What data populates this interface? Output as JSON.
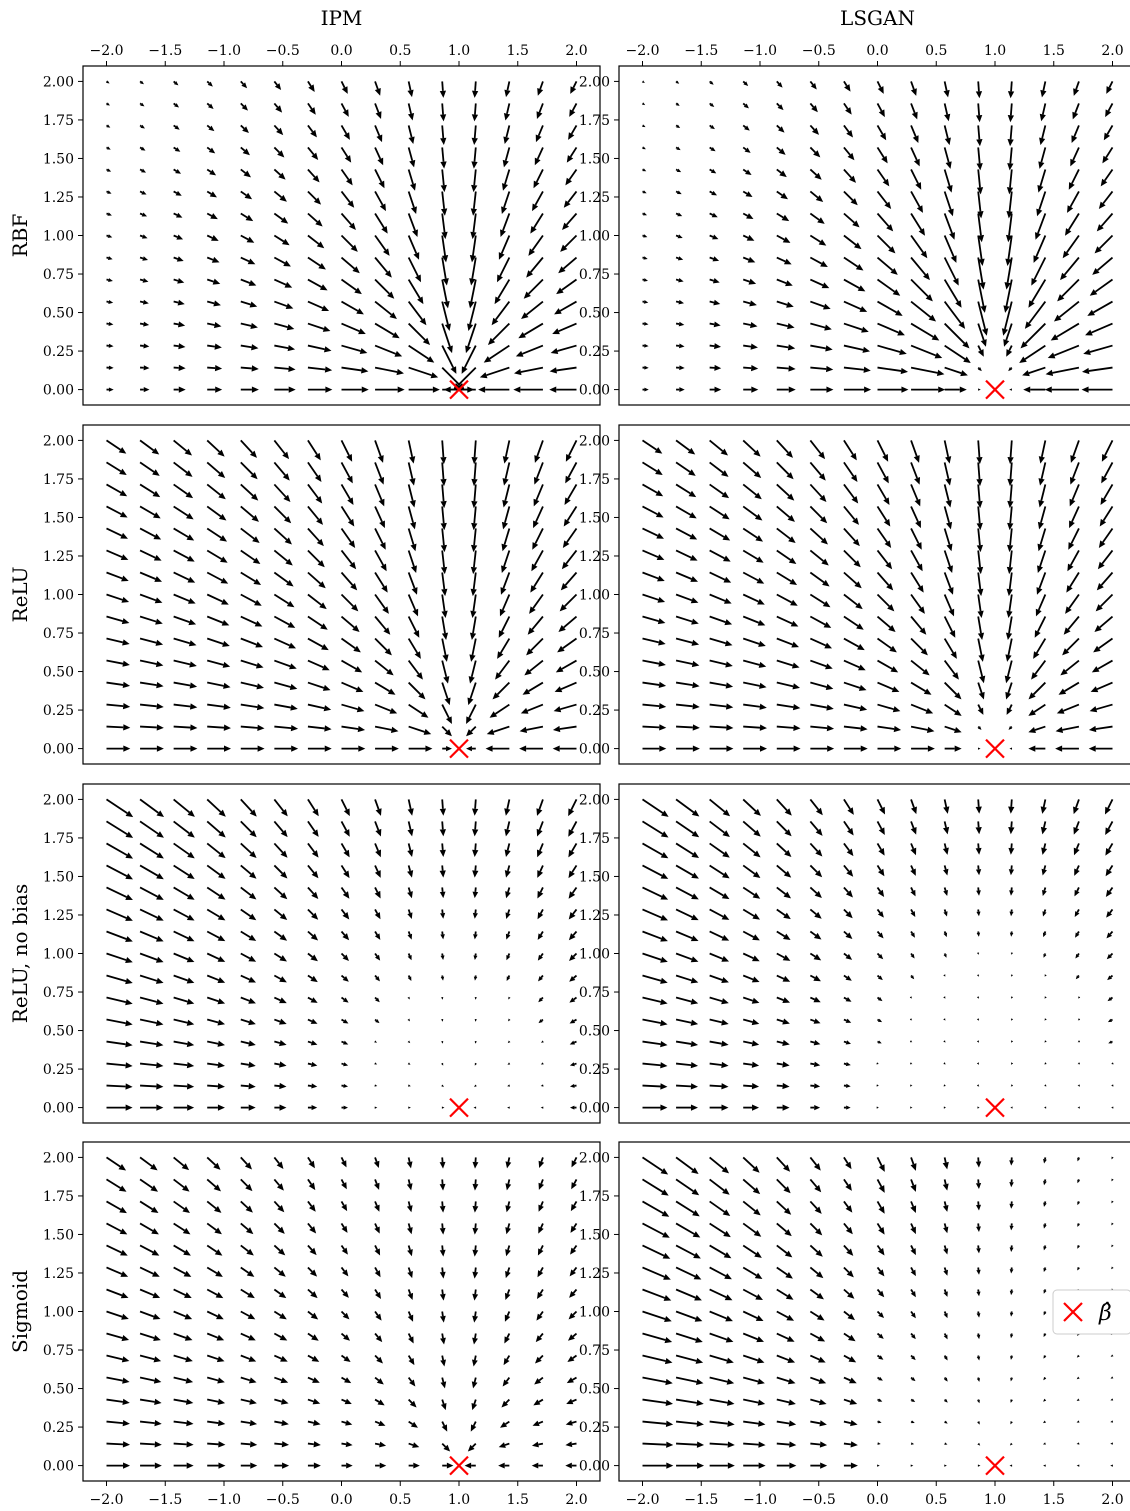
{
  "chart_data": {
    "type": "quiver",
    "layout": "4 rows x 2 columns grid of vector-field plots",
    "columns": [
      "IPM",
      "LSGAN"
    ],
    "rows": [
      "RBF",
      "ReLU",
      "ReLU, no bias",
      "Sigmoid"
    ],
    "x_ticks": [
      -2.0,
      -1.5,
      -1.0,
      -0.5,
      0.0,
      0.5,
      1.0,
      1.5,
      2.0
    ],
    "x_tick_labels": [
      "−2.0",
      "−1.5",
      "−1.0",
      "−0.5",
      "0.0",
      "0.5",
      "1.0",
      "1.5",
      "2.0"
    ],
    "y_ticks": [
      0.0,
      0.25,
      0.5,
      0.75,
      1.0,
      1.25,
      1.5,
      1.75,
      2.0
    ],
    "y_tick_labels": [
      "0.00",
      "0.25",
      "0.50",
      "0.75",
      "1.00",
      "1.25",
      "1.50",
      "1.75",
      "2.00"
    ],
    "xlim": [
      -2.2,
      2.2
    ],
    "ylim": [
      -0.1,
      2.1
    ],
    "grid": false,
    "arrow_grid": {
      "x_start": -2.0,
      "x_end": 2.0,
      "nx": 15,
      "y_start": 0.0,
      "y_end": 2.0,
      "ny": 15
    },
    "target_marker": {
      "x": 1.0,
      "y": 0.0,
      "symbol": "x",
      "color": "#ff0000"
    },
    "legend": {
      "label": "β̂",
      "placement": "right",
      "panel_row": 3,
      "panel_col": 1
    },
    "arrow_color": "#000000"
  }
}
